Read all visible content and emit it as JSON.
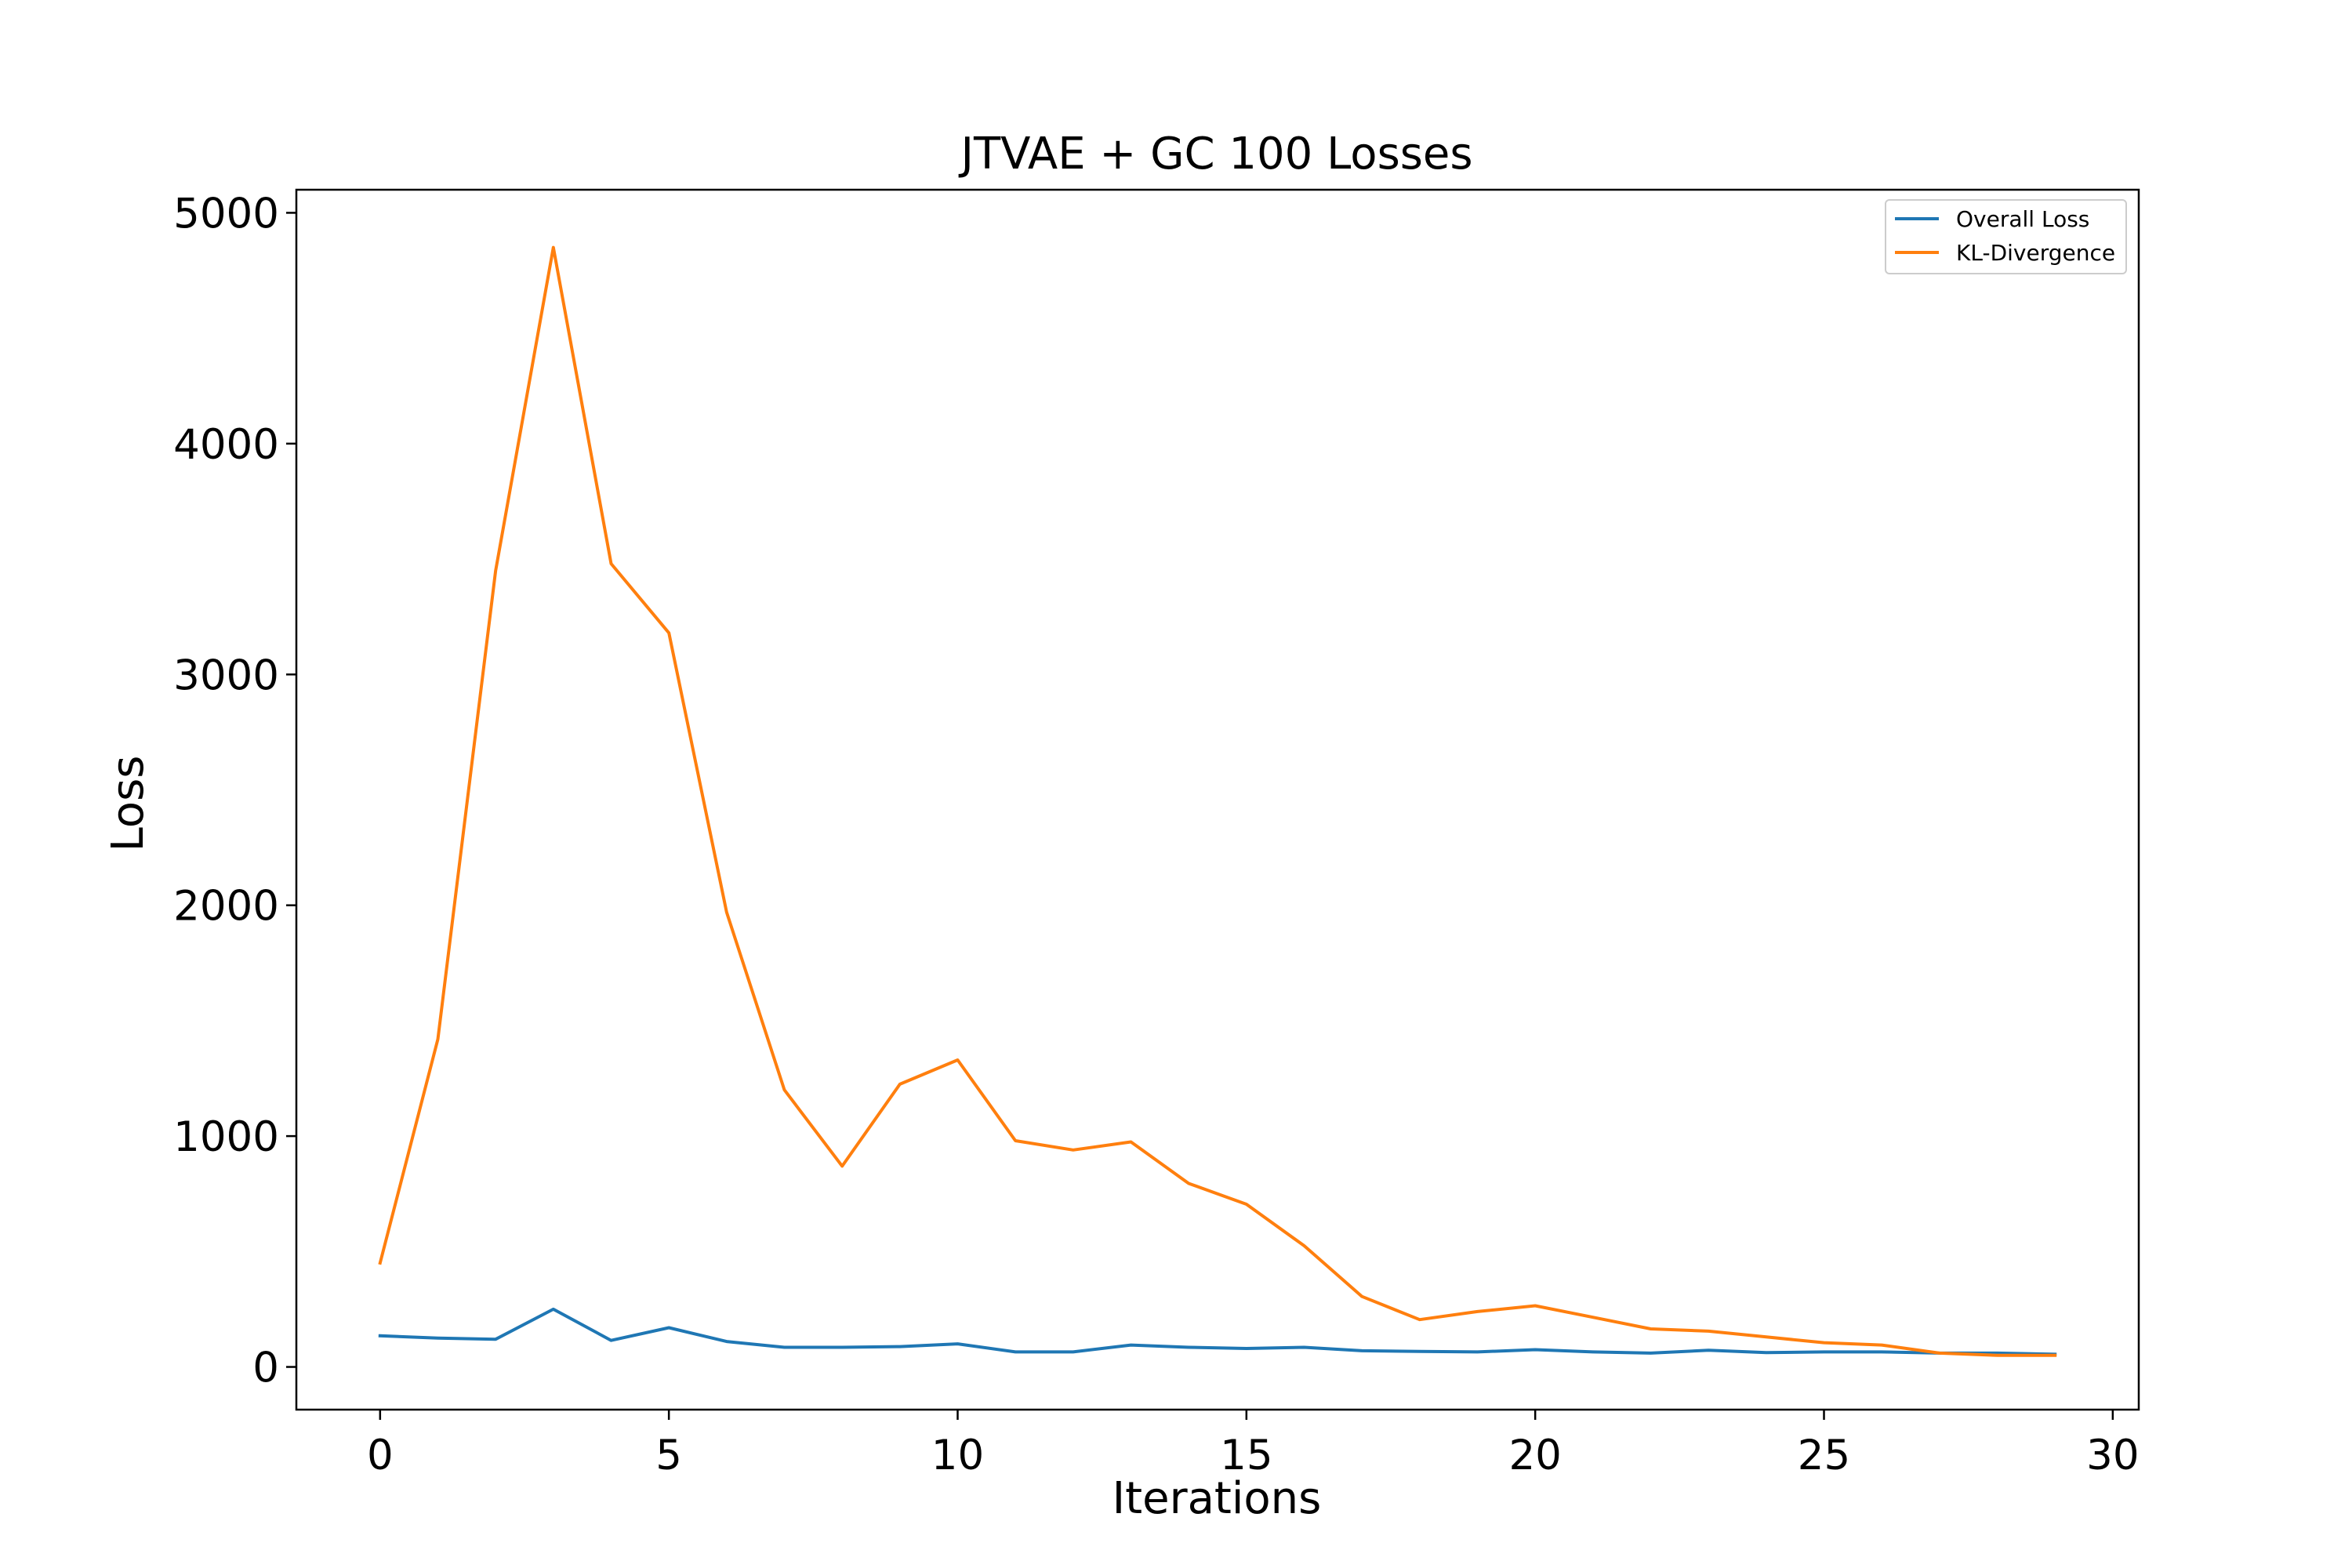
{
  "chart_data": {
    "type": "line",
    "title": "JTVAE + GC 100 Losses",
    "xlabel": "Iterations",
    "ylabel": "Loss",
    "xlim": [
      -1.45,
      30.45
    ],
    "ylim": [
      -185,
      5100
    ],
    "xticks": [
      0,
      5,
      10,
      15,
      20,
      25,
      30
    ],
    "yticks": [
      0,
      1000,
      2000,
      3000,
      4000,
      5000
    ],
    "grid": false,
    "legend_position": "top-right",
    "x": [
      0,
      1,
      2,
      3,
      4,
      5,
      6,
      7,
      8,
      9,
      10,
      11,
      12,
      13,
      14,
      15,
      16,
      17,
      18,
      19,
      20,
      21,
      22,
      23,
      24,
      25,
      26,
      27,
      28,
      29
    ],
    "series": [
      {
        "name": "Overall Loss",
        "color": "#1f77b4",
        "values": [
          135,
          125,
          120,
          250,
          115,
          170,
          110,
          85,
          85,
          88,
          100,
          65,
          65,
          95,
          85,
          80,
          85,
          70,
          67,
          65,
          75,
          65,
          60,
          72,
          62,
          65,
          65,
          60,
          60,
          55
        ]
      },
      {
        "name": "KL-Divergence",
        "color": "#ff7f0e",
        "values": [
          450,
          1420,
          3450,
          4850,
          3480,
          3180,
          1970,
          1200,
          870,
          1225,
          1330,
          980,
          940,
          975,
          795,
          705,
          525,
          305,
          205,
          240,
          265,
          215,
          165,
          155,
          130,
          105,
          95,
          60,
          50,
          50
        ]
      }
    ]
  }
}
